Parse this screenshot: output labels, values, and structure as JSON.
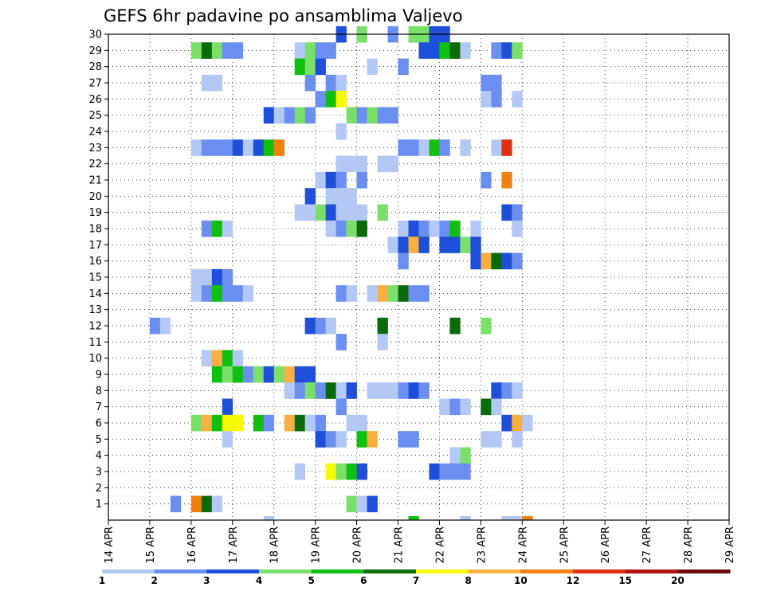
{
  "chart_data": {
    "type": "heatmap",
    "title": "GEFS 6hr padavine po ansamblima Valjevo",
    "xlabel": "",
    "ylabel": "",
    "x_tick_labels": [
      "14 APR",
      "15 APR",
      "16 APR",
      "17 APR",
      "18 APR",
      "19 APR",
      "20 APR",
      "21 APR",
      "22 APR",
      "23 APR",
      "24 APR",
      "25 APR",
      "26 APR",
      "27 APR",
      "28 APR",
      "29 APR"
    ],
    "y_tick_labels": [
      "1",
      "2",
      "3",
      "4",
      "5",
      "6",
      "7",
      "8",
      "9",
      "10",
      "11",
      "12",
      "13",
      "14",
      "15",
      "16",
      "17",
      "18",
      "19",
      "20",
      "21",
      "22",
      "23",
      "24",
      "25",
      "26",
      "27",
      "28",
      "29",
      "30"
    ],
    "x_unit": "6-hour step from 14 APR 00Z",
    "y_range": [
      1,
      30
    ],
    "grid": true,
    "legend": {
      "placement": "bottom",
      "bins": [
        {
          "label": "1",
          "color": "#b4c8f5"
        },
        {
          "label": "2",
          "color": "#6a8ff0"
        },
        {
          "label": "3",
          "color": "#1e4fd8"
        },
        {
          "label": "4",
          "color": "#7ae06a"
        },
        {
          "label": "5",
          "color": "#10c010"
        },
        {
          "label": "6",
          "color": "#0a6b0a"
        },
        {
          "label": "7",
          "color": "#f8f800"
        },
        {
          "label": "8",
          "color": "#f8b040"
        },
        {
          "label": "10",
          "color": "#f08010"
        },
        {
          "label": "12",
          "color": "#e03010"
        },
        {
          "label": "15",
          "color": "#b41010"
        },
        {
          "label": "20",
          "color": "#6a0a0a"
        }
      ],
      "labels": [
        "1",
        "2",
        "3",
        "4",
        "5",
        "6",
        "7",
        "8",
        "10",
        "12",
        "15",
        "20"
      ]
    },
    "cells_note": "each entry: [step, member, color_bin_index]",
    "cells": [
      [
        22,
        30,
        2
      ],
      [
        24,
        30,
        3
      ],
      [
        27,
        30,
        1
      ],
      [
        29,
        30,
        3
      ],
      [
        30,
        30,
        3
      ],
      [
        31,
        30,
        2
      ],
      [
        32,
        30,
        2
      ],
      [
        8,
        29,
        3
      ],
      [
        9,
        29,
        5
      ],
      [
        10,
        29,
        3
      ],
      [
        11,
        29,
        1
      ],
      [
        12,
        29,
        1
      ],
      [
        18,
        29,
        0
      ],
      [
        19,
        29,
        3
      ],
      [
        20,
        29,
        1
      ],
      [
        21,
        29,
        1
      ],
      [
        30,
        29,
        2
      ],
      [
        31,
        29,
        2
      ],
      [
        32,
        29,
        4
      ],
      [
        33,
        29,
        5
      ],
      [
        34,
        29,
        0
      ],
      [
        37,
        29,
        1
      ],
      [
        38,
        29,
        2
      ],
      [
        39,
        29,
        3
      ],
      [
        18,
        28,
        4
      ],
      [
        19,
        28,
        3
      ],
      [
        20,
        28,
        2
      ],
      [
        25,
        28,
        0
      ],
      [
        28,
        28,
        1
      ],
      [
        9,
        27,
        0
      ],
      [
        10,
        27,
        0
      ],
      [
        19,
        27,
        1
      ],
      [
        21,
        27,
        1
      ],
      [
        22,
        27,
        0
      ],
      [
        36,
        27,
        1
      ],
      [
        37,
        27,
        1
      ],
      [
        20,
        26,
        1
      ],
      [
        21,
        26,
        4
      ],
      [
        22,
        26,
        6
      ],
      [
        36,
        26,
        0
      ],
      [
        37,
        26,
        1
      ],
      [
        39,
        26,
        0
      ],
      [
        15,
        25,
        2
      ],
      [
        16,
        25,
        0
      ],
      [
        17,
        25,
        1
      ],
      [
        18,
        25,
        3
      ],
      [
        19,
        25,
        1
      ],
      [
        23,
        25,
        3
      ],
      [
        24,
        25,
        1
      ],
      [
        25,
        25,
        3
      ],
      [
        26,
        25,
        1
      ],
      [
        27,
        25,
        1
      ],
      [
        22,
        24,
        0
      ],
      [
        8,
        23,
        0
      ],
      [
        9,
        23,
        1
      ],
      [
        10,
        23,
        1
      ],
      [
        11,
        23,
        1
      ],
      [
        12,
        23,
        2
      ],
      [
        13,
        23,
        0
      ],
      [
        14,
        23,
        2
      ],
      [
        15,
        23,
        4
      ],
      [
        16,
        23,
        8
      ],
      [
        28,
        23,
        1
      ],
      [
        29,
        23,
        1
      ],
      [
        30,
        23,
        0
      ],
      [
        31,
        23,
        4
      ],
      [
        32,
        23,
        1
      ],
      [
        34,
        23,
        0
      ],
      [
        37,
        23,
        0
      ],
      [
        38,
        23,
        9
      ],
      [
        22,
        22,
        0
      ],
      [
        23,
        22,
        0
      ],
      [
        24,
        22,
        0
      ],
      [
        26,
        22,
        0
      ],
      [
        27,
        22,
        0
      ],
      [
        20,
        21,
        0
      ],
      [
        21,
        21,
        2
      ],
      [
        22,
        21,
        1
      ],
      [
        24,
        21,
        1
      ],
      [
        36,
        21,
        1
      ],
      [
        38,
        21,
        8
      ],
      [
        19,
        20,
        2
      ],
      [
        21,
        20,
        0
      ],
      [
        22,
        20,
        0
      ],
      [
        23,
        20,
        0
      ],
      [
        18,
        19,
        0
      ],
      [
        19,
        19,
        0
      ],
      [
        20,
        19,
        3
      ],
      [
        21,
        19,
        2
      ],
      [
        22,
        19,
        0
      ],
      [
        23,
        19,
        0
      ],
      [
        24,
        19,
        0
      ],
      [
        26,
        19,
        3
      ],
      [
        38,
        19,
        2
      ],
      [
        39,
        19,
        1
      ],
      [
        9,
        18,
        1
      ],
      [
        10,
        18,
        4
      ],
      [
        11,
        18,
        0
      ],
      [
        21,
        18,
        0
      ],
      [
        22,
        18,
        1
      ],
      [
        23,
        18,
        3
      ],
      [
        24,
        18,
        5
      ],
      [
        28,
        18,
        0
      ],
      [
        29,
        18,
        2
      ],
      [
        30,
        18,
        1
      ],
      [
        31,
        18,
        0
      ],
      [
        32,
        18,
        1
      ],
      [
        33,
        18,
        4
      ],
      [
        35,
        18,
        0
      ],
      [
        39,
        18,
        0
      ],
      [
        27,
        17,
        0
      ],
      [
        28,
        17,
        2
      ],
      [
        29,
        17,
        7
      ],
      [
        30,
        17,
        2
      ],
      [
        32,
        17,
        2
      ],
      [
        33,
        17,
        2
      ],
      [
        34,
        17,
        3
      ],
      [
        35,
        17,
        2
      ],
      [
        28,
        16,
        1
      ],
      [
        35,
        16,
        2
      ],
      [
        36,
        16,
        7
      ],
      [
        37,
        16,
        5
      ],
      [
        38,
        16,
        2
      ],
      [
        39,
        16,
        1
      ],
      [
        8,
        15,
        0
      ],
      [
        9,
        15,
        0
      ],
      [
        10,
        15,
        2
      ],
      [
        11,
        15,
        1
      ],
      [
        8,
        14,
        0
      ],
      [
        9,
        14,
        1
      ],
      [
        10,
        14,
        4
      ],
      [
        11,
        14,
        1
      ],
      [
        12,
        14,
        1
      ],
      [
        13,
        14,
        0
      ],
      [
        22,
        14,
        1
      ],
      [
        23,
        14,
        0
      ],
      [
        25,
        14,
        0
      ],
      [
        26,
        14,
        7
      ],
      [
        27,
        14,
        3
      ],
      [
        28,
        14,
        5
      ],
      [
        29,
        14,
        1
      ],
      [
        30,
        14,
        1
      ],
      [
        4,
        12,
        1
      ],
      [
        5,
        12,
        0
      ],
      [
        19,
        12,
        2
      ],
      [
        20,
        12,
        1
      ],
      [
        21,
        12,
        0
      ],
      [
        26,
        12,
        5
      ],
      [
        33,
        12,
        5
      ],
      [
        36,
        12,
        3
      ],
      [
        22,
        11,
        1
      ],
      [
        26,
        11,
        0
      ],
      [
        9,
        10,
        0
      ],
      [
        10,
        10,
        7
      ],
      [
        11,
        10,
        4
      ],
      [
        12,
        10,
        0
      ],
      [
        10,
        9,
        4
      ],
      [
        11,
        9,
        3
      ],
      [
        12,
        9,
        4
      ],
      [
        13,
        9,
        1
      ],
      [
        14,
        9,
        3
      ],
      [
        15,
        9,
        2
      ],
      [
        16,
        9,
        3
      ],
      [
        17,
        9,
        7
      ],
      [
        18,
        9,
        2
      ],
      [
        19,
        9,
        2
      ],
      [
        17,
        8,
        0
      ],
      [
        18,
        8,
        1
      ],
      [
        19,
        8,
        3
      ],
      [
        20,
        8,
        1
      ],
      [
        21,
        8,
        5
      ],
      [
        22,
        8,
        0
      ],
      [
        23,
        8,
        2
      ],
      [
        25,
        8,
        0
      ],
      [
        26,
        8,
        0
      ],
      [
        27,
        8,
        0
      ],
      [
        28,
        8,
        1
      ],
      [
        29,
        8,
        2
      ],
      [
        30,
        8,
        1
      ],
      [
        37,
        8,
        2
      ],
      [
        38,
        8,
        1
      ],
      [
        39,
        8,
        0
      ],
      [
        11,
        7,
        2
      ],
      [
        22,
        7,
        1
      ],
      [
        32,
        7,
        0
      ],
      [
        33,
        7,
        1
      ],
      [
        34,
        7,
        0
      ],
      [
        36,
        7,
        5
      ],
      [
        37,
        7,
        0
      ],
      [
        8,
        6,
        3
      ],
      [
        9,
        6,
        7
      ],
      [
        10,
        6,
        4
      ],
      [
        11,
        6,
        6
      ],
      [
        12,
        6,
        6
      ],
      [
        14,
        6,
        4
      ],
      [
        15,
        6,
        1
      ],
      [
        17,
        6,
        7
      ],
      [
        18,
        6,
        5
      ],
      [
        19,
        6,
        0
      ],
      [
        20,
        6,
        1
      ],
      [
        23,
        6,
        0
      ],
      [
        24,
        6,
        0
      ],
      [
        38,
        6,
        2
      ],
      [
        39,
        6,
        7
      ],
      [
        40,
        6,
        0
      ],
      [
        11,
        5,
        0
      ],
      [
        20,
        5,
        2
      ],
      [
        21,
        5,
        1
      ],
      [
        22,
        5,
        0
      ],
      [
        24,
        5,
        4
      ],
      [
        25,
        5,
        7
      ],
      [
        28,
        5,
        1
      ],
      [
        29,
        5,
        1
      ],
      [
        36,
        5,
        0
      ],
      [
        37,
        5,
        0
      ],
      [
        39,
        5,
        0
      ],
      [
        33,
        4,
        0
      ],
      [
        34,
        4,
        3
      ],
      [
        18,
        3,
        0
      ],
      [
        21,
        3,
        6
      ],
      [
        22,
        3,
        3
      ],
      [
        23,
        3,
        4
      ],
      [
        24,
        3,
        2
      ],
      [
        31,
        3,
        2
      ],
      [
        32,
        3,
        1
      ],
      [
        33,
        3,
        1
      ],
      [
        34,
        3,
        1
      ],
      [
        6,
        1,
        1
      ],
      [
        8,
        1,
        8
      ],
      [
        9,
        1,
        5
      ],
      [
        10,
        1,
        0
      ],
      [
        23,
        1,
        3
      ],
      [
        24,
        1,
        0
      ],
      [
        25,
        1,
        2
      ],
      [
        15,
        0,
        0
      ],
      [
        29,
        0,
        4
      ],
      [
        34,
        0,
        0
      ],
      [
        38,
        0,
        0
      ],
      [
        39,
        0,
        0
      ],
      [
        40,
        0,
        8
      ]
    ]
  }
}
